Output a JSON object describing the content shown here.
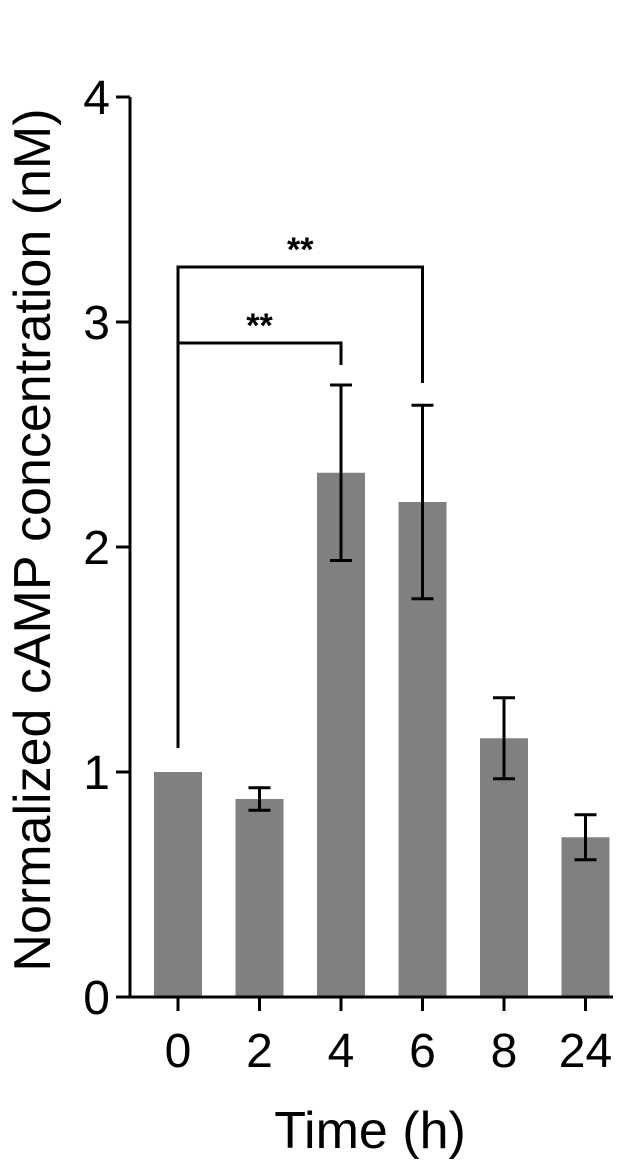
{
  "chart_data": {
    "type": "bar",
    "title": "",
    "xlabel": "Time (h)",
    "ylabel": "Normalized cAMP concentration (nM)",
    "categories": [
      "0",
      "2",
      "4",
      "6",
      "8",
      "24"
    ],
    "values": [
      1.0,
      0.88,
      2.33,
      2.2,
      1.15,
      0.71
    ],
    "errors": [
      0,
      0.05,
      0.39,
      0.43,
      0.18,
      0.1
    ],
    "ylim": [
      0,
      4
    ],
    "yticks": [
      "0",
      "1",
      "2",
      "3",
      "4"
    ],
    "grid": false,
    "bar_color": "#808080",
    "significance": [
      {
        "from": "0",
        "to": "4",
        "label": "**"
      },
      {
        "from": "0",
        "to": "6",
        "label": "**"
      }
    ]
  }
}
